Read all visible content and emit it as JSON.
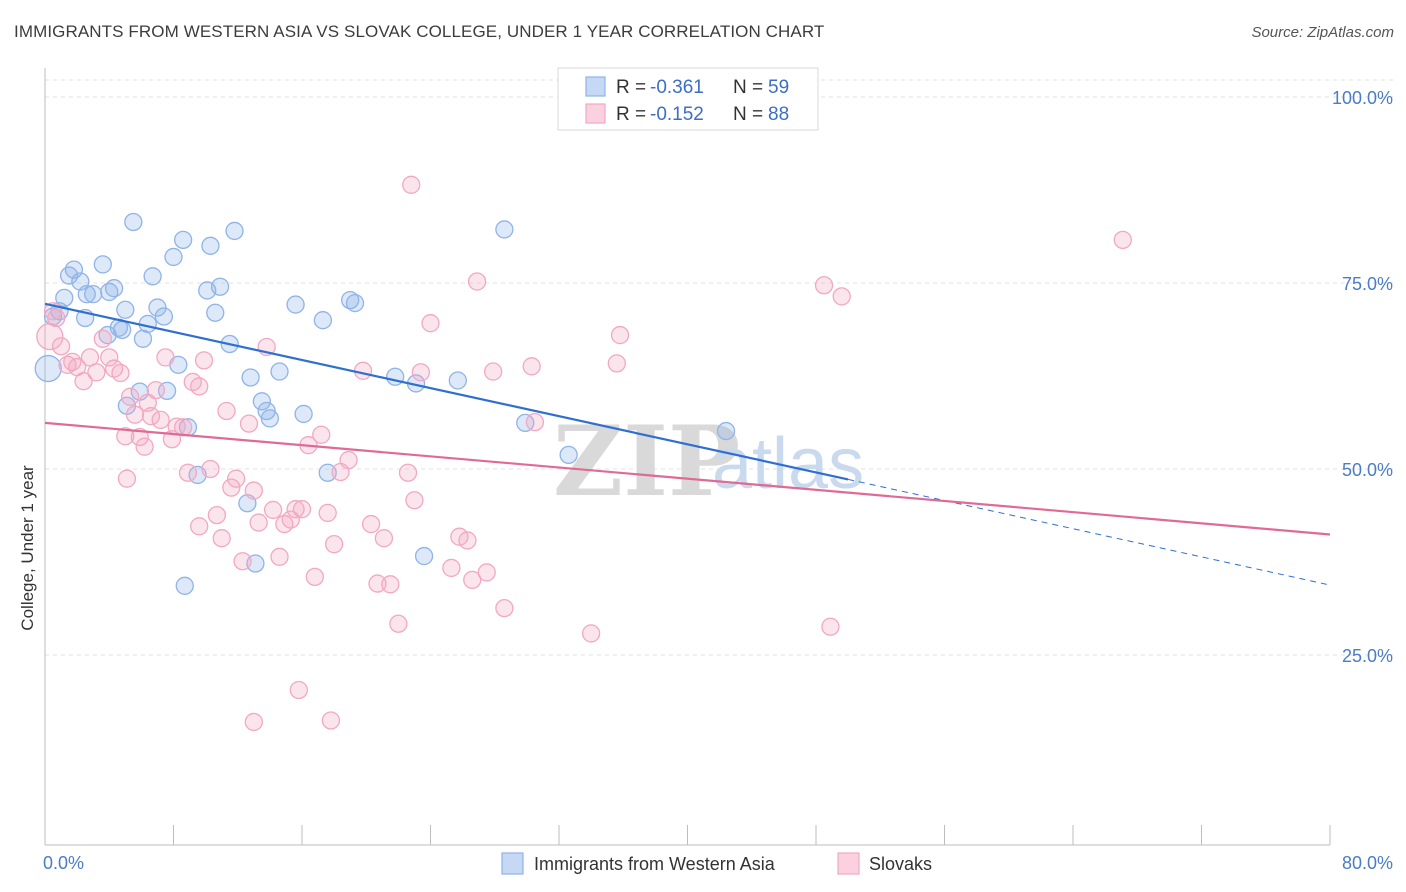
{
  "title": "IMMIGRANTS FROM WESTERN ASIA VS SLOVAK COLLEGE, UNDER 1 YEAR CORRELATION CHART",
  "source": "Source: ZipAtlas.com",
  "watermark": {
    "zip": "ZIP",
    "atlas": "atlas"
  },
  "chart_data": {
    "type": "scatter",
    "title": "IMMIGRANTS FROM WESTERN ASIA VS SLOVAK COLLEGE, UNDER 1 YEAR CORRELATION CHART",
    "xlabel": "",
    "ylabel": "College, Under 1 year",
    "xlim": [
      0,
      80
    ],
    "ylim": [
      0,
      100
    ],
    "x_tick_labels": [
      "0.0%",
      "80.0%"
    ],
    "y_ticks": [
      25,
      50,
      75,
      100
    ],
    "y_tick_labels": [
      "25.0%",
      "50.0%",
      "75.0%",
      "100.0%"
    ],
    "grid": true,
    "legend_position": "top-center",
    "series": [
      {
        "name": "Immigrants from Western Asia",
        "color": "#8fb4e8",
        "line_color": "#2f6fcf",
        "R": "-0.361",
        "N": "59",
        "trend": {
          "x0": 0,
          "y0": 72.2,
          "x1": 50,
          "y1": 48.6,
          "dash_to_x": 80,
          "dash_to_y": 34.4
        },
        "points": [
          [
            0.2,
            63.5
          ],
          [
            0.5,
            70.5
          ],
          [
            0.9,
            71.2
          ],
          [
            1.2,
            73.0
          ],
          [
            1.5,
            76.0
          ],
          [
            1.8,
            76.8
          ],
          [
            2.2,
            75.2
          ],
          [
            2.6,
            73.5
          ],
          [
            3.0,
            73.5
          ],
          [
            3.6,
            77.5
          ],
          [
            3.9,
            68.0
          ],
          [
            4.0,
            73.8
          ],
          [
            4.3,
            74.3
          ],
          [
            4.6,
            69.0
          ],
          [
            4.8,
            68.7
          ],
          [
            5.1,
            58.5
          ],
          [
            5.5,
            83.2
          ],
          [
            5.9,
            60.4
          ],
          [
            6.1,
            67.5
          ],
          [
            6.4,
            69.5
          ],
          [
            6.7,
            75.9
          ],
          [
            7.0,
            71.7
          ],
          [
            7.4,
            70.5
          ],
          [
            7.6,
            60.5
          ],
          [
            8.0,
            78.5
          ],
          [
            8.3,
            64.0
          ],
          [
            8.6,
            80.8
          ],
          [
            8.9,
            55.6
          ],
          [
            9.5,
            49.2
          ],
          [
            10.1,
            74.0
          ],
          [
            10.3,
            80.0
          ],
          [
            10.6,
            71.0
          ],
          [
            10.9,
            74.5
          ],
          [
            11.5,
            66.8
          ],
          [
            11.8,
            82.0
          ],
          [
            12.6,
            45.4
          ],
          [
            12.8,
            62.3
          ],
          [
            13.1,
            37.3
          ],
          [
            13.5,
            59.1
          ],
          [
            13.8,
            57.8
          ],
          [
            14.0,
            56.8
          ],
          [
            14.6,
            63.1
          ],
          [
            15.6,
            72.1
          ],
          [
            16.1,
            57.4
          ],
          [
            17.3,
            70.0
          ],
          [
            17.6,
            49.5
          ],
          [
            19.0,
            72.7
          ],
          [
            19.3,
            72.3
          ],
          [
            21.8,
            62.4
          ],
          [
            23.1,
            61.5
          ],
          [
            23.6,
            38.3
          ],
          [
            25.7,
            61.9
          ],
          [
            28.6,
            82.2
          ],
          [
            29.9,
            56.2
          ],
          [
            32.6,
            51.9
          ],
          [
            42.4,
            55.1
          ],
          [
            8.7,
            34.3
          ],
          [
            2.5,
            70.3
          ],
          [
            5.0,
            71.4
          ]
        ]
      },
      {
        "name": "Slovaks",
        "color": "#f2a8c2",
        "line_color": "#e06a96",
        "R": "-0.152",
        "N": "88",
        "trend": {
          "x0": 0,
          "y0": 56.2,
          "x1": 80,
          "y1": 41.2
        },
        "points": [
          [
            0.3,
            67.8
          ],
          [
            0.5,
            71.2
          ],
          [
            0.7,
            70.3
          ],
          [
            1.0,
            66.5
          ],
          [
            1.4,
            64.0
          ],
          [
            1.7,
            64.4
          ],
          [
            2.0,
            63.7
          ],
          [
            2.4,
            61.8
          ],
          [
            2.8,
            65.0
          ],
          [
            3.2,
            63.0
          ],
          [
            3.6,
            67.5
          ],
          [
            4.0,
            65.0
          ],
          [
            4.3,
            63.5
          ],
          [
            4.7,
            62.9
          ],
          [
            5.0,
            54.4
          ],
          [
            5.3,
            59.7
          ],
          [
            5.6,
            57.3
          ],
          [
            5.9,
            54.3
          ],
          [
            6.2,
            53.0
          ],
          [
            6.6,
            57.1
          ],
          [
            6.9,
            60.6
          ],
          [
            7.2,
            56.6
          ],
          [
            7.5,
            65.0
          ],
          [
            7.9,
            54.0
          ],
          [
            8.2,
            55.7
          ],
          [
            8.6,
            55.6
          ],
          [
            8.9,
            49.5
          ],
          [
            9.2,
            61.7
          ],
          [
            9.6,
            61.1
          ],
          [
            9.9,
            64.6
          ],
          [
            10.3,
            50.0
          ],
          [
            10.7,
            43.8
          ],
          [
            11.0,
            40.7
          ],
          [
            11.3,
            57.8
          ],
          [
            11.6,
            47.5
          ],
          [
            11.9,
            48.7
          ],
          [
            12.3,
            37.6
          ],
          [
            12.7,
            56.1
          ],
          [
            13.0,
            47.1
          ],
          [
            13.3,
            42.8
          ],
          [
            13.8,
            66.4
          ],
          [
            14.2,
            44.5
          ],
          [
            14.6,
            38.2
          ],
          [
            14.9,
            42.6
          ],
          [
            15.3,
            43.2
          ],
          [
            15.6,
            44.6
          ],
          [
            16.0,
            44.6
          ],
          [
            16.4,
            53.2
          ],
          [
            16.8,
            35.5
          ],
          [
            17.2,
            54.6
          ],
          [
            17.6,
            44.1
          ],
          [
            18.0,
            39.9
          ],
          [
            18.4,
            49.6
          ],
          [
            18.9,
            51.2
          ],
          [
            19.8,
            63.2
          ],
          [
            20.3,
            42.6
          ],
          [
            20.7,
            34.6
          ],
          [
            21.1,
            40.7
          ],
          [
            21.5,
            34.5
          ],
          [
            22.0,
            29.2
          ],
          [
            22.6,
            49.5
          ],
          [
            23.0,
            45.8
          ],
          [
            23.4,
            63.0
          ],
          [
            24.0,
            69.6
          ],
          [
            25.3,
            36.7
          ],
          [
            25.8,
            40.9
          ],
          [
            26.3,
            40.4
          ],
          [
            26.9,
            75.2
          ],
          [
            27.5,
            36.1
          ],
          [
            27.9,
            63.1
          ],
          [
            28.6,
            31.3
          ],
          [
            30.5,
            56.3
          ],
          [
            34.0,
            27.9
          ],
          [
            35.6,
            64.2
          ],
          [
            35.8,
            68.0
          ],
          [
            48.5,
            74.7
          ],
          [
            48.9,
            28.8
          ],
          [
            49.6,
            73.2
          ],
          [
            67.1,
            80.8
          ],
          [
            13.0,
            16.0
          ],
          [
            15.8,
            20.3
          ],
          [
            17.8,
            16.2
          ],
          [
            22.8,
            88.2
          ],
          [
            26.6,
            35.1
          ],
          [
            30.3,
            63.8
          ],
          [
            6.4,
            58.9
          ],
          [
            5.1,
            48.7
          ],
          [
            9.6,
            42.3
          ]
        ]
      }
    ]
  }
}
